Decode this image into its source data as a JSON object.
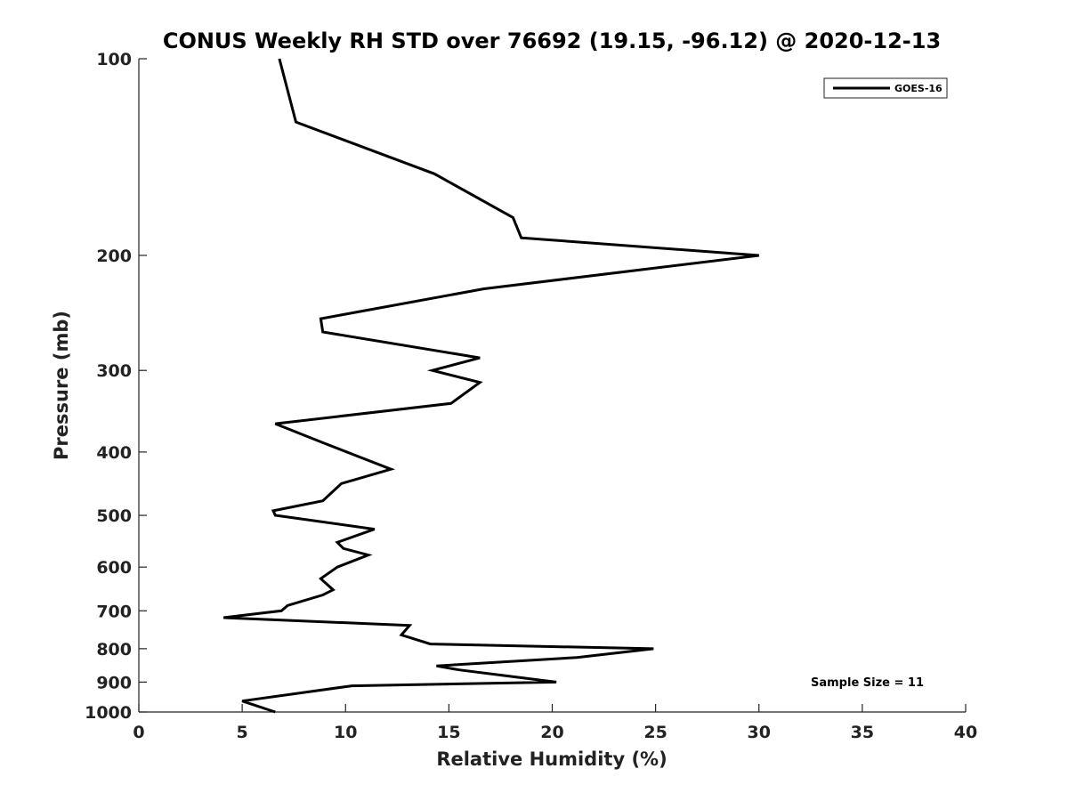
{
  "chart_data": {
    "type": "line",
    "title": "CONUS Weekly RH STD over 76692 (19.15, -96.12) @ 2020-12-13",
    "xlabel": "Relative Humidity (%)",
    "ylabel": "Pressure (mb)",
    "xlim": [
      0,
      40
    ],
    "ylim": [
      100,
      1000
    ],
    "yscale": "log",
    "yaxis_reversed": true,
    "xticks": [
      "0",
      "5",
      "10",
      "15",
      "20",
      "25",
      "30",
      "35",
      "40"
    ],
    "yticks": [
      "100",
      "200",
      "300",
      "400",
      "500",
      "600",
      "700",
      "800",
      "900",
      "1000"
    ],
    "grid": false,
    "legend_position": "top-right",
    "series": [
      {
        "name": "GOES-16",
        "color": "#000000",
        "points": [
          [
            6.8,
            100
          ],
          [
            7.6,
            125
          ],
          [
            14.3,
            150
          ],
          [
            18.1,
            175
          ],
          [
            18.5,
            188
          ],
          [
            30.0,
            200
          ],
          [
            16.7,
            225
          ],
          [
            8.8,
            250
          ],
          [
            8.9,
            262
          ],
          [
            16.5,
            287
          ],
          [
            14.2,
            300
          ],
          [
            16.5,
            313
          ],
          [
            15.1,
            337
          ],
          [
            6.6,
            362
          ],
          [
            8.9,
            387
          ],
          [
            12.2,
            425
          ],
          [
            9.8,
            447
          ],
          [
            8.9,
            475
          ],
          [
            6.5,
            492
          ],
          [
            6.6,
            500
          ],
          [
            11.4,
            525
          ],
          [
            9.6,
            550
          ],
          [
            9.9,
            562
          ],
          [
            11.1,
            575
          ],
          [
            9.6,
            600
          ],
          [
            8.8,
            625
          ],
          [
            9.4,
            650
          ],
          [
            8.9,
            662
          ],
          [
            7.2,
            687
          ],
          [
            6.9,
            700
          ],
          [
            4.1,
            717
          ],
          [
            13.1,
            737
          ],
          [
            12.7,
            762
          ],
          [
            14.1,
            787
          ],
          [
            24.9,
            800
          ],
          [
            21.2,
            825
          ],
          [
            14.4,
            850
          ],
          [
            15.5,
            862
          ],
          [
            18.6,
            887
          ],
          [
            20.2,
            900
          ],
          [
            10.3,
            912
          ],
          [
            5.0,
            962
          ],
          [
            6.6,
            1000
          ]
        ]
      }
    ],
    "annotations": [
      {
        "text": "Sample Size = 11"
      }
    ]
  }
}
